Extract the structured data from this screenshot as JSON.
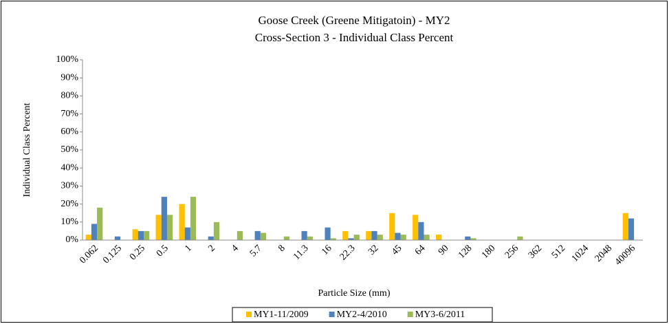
{
  "chart_data": {
    "type": "bar",
    "title": "Goose Creek (Greene Mitigatoin) - MY2",
    "subtitle": "Cross-Section 3 - Individual Class Percent",
    "x_label": "Particle Size (mm)",
    "y_label": "Individual Class Percent",
    "categories": [
      "0.062",
      "0.125",
      "0.25",
      "0.5",
      "1",
      "2",
      "4",
      "5.7",
      "8",
      "11.3",
      "16",
      "22.3",
      "32",
      "45",
      "64",
      "90",
      "128",
      "180",
      "256",
      "362",
      "512",
      "1024",
      "2048",
      "40096"
    ],
    "series": [
      {
        "name": "MY1-11/2009",
        "color": "#ffc000",
        "values": [
          3,
          0,
          6,
          14,
          20,
          0,
          0,
          0,
          0,
          0,
          0,
          5,
          5,
          15,
          14,
          3,
          0,
          0,
          0,
          0,
          0,
          0,
          0,
          15
        ]
      },
      {
        "name": "MY2-4/2010",
        "color": "#4f81bd",
        "values": [
          9,
          2,
          5,
          24,
          7,
          2,
          0,
          5,
          0,
          5,
          7,
          1,
          5,
          4,
          10,
          0,
          2,
          0,
          0,
          0,
          0,
          0,
          0,
          12
        ]
      },
      {
        "name": "MY3-6/2011",
        "color": "#9bbb59",
        "values": [
          18,
          0,
          5,
          14,
          24,
          10,
          5,
          4,
          2,
          2,
          1,
          3,
          3,
          3,
          3,
          0,
          1,
          0,
          2,
          0,
          0,
          0,
          0,
          0
        ]
      }
    ],
    "ylim": [
      0,
      100
    ],
    "yticks": [
      {
        "value": 0,
        "label": "0%"
      },
      {
        "value": 10,
        "label": "10%"
      },
      {
        "value": 20,
        "label": "20%"
      },
      {
        "value": 30,
        "label": "30%"
      },
      {
        "value": 40,
        "label": "40%"
      },
      {
        "value": 50,
        "label": "50%"
      },
      {
        "value": 60,
        "label": "60%"
      },
      {
        "value": 70,
        "label": "70%"
      },
      {
        "value": 80,
        "label": "80%"
      },
      {
        "value": 90,
        "label": "90%"
      },
      {
        "value": 100,
        "label": "100%"
      }
    ],
    "grid": false,
    "legend": "bottom"
  }
}
